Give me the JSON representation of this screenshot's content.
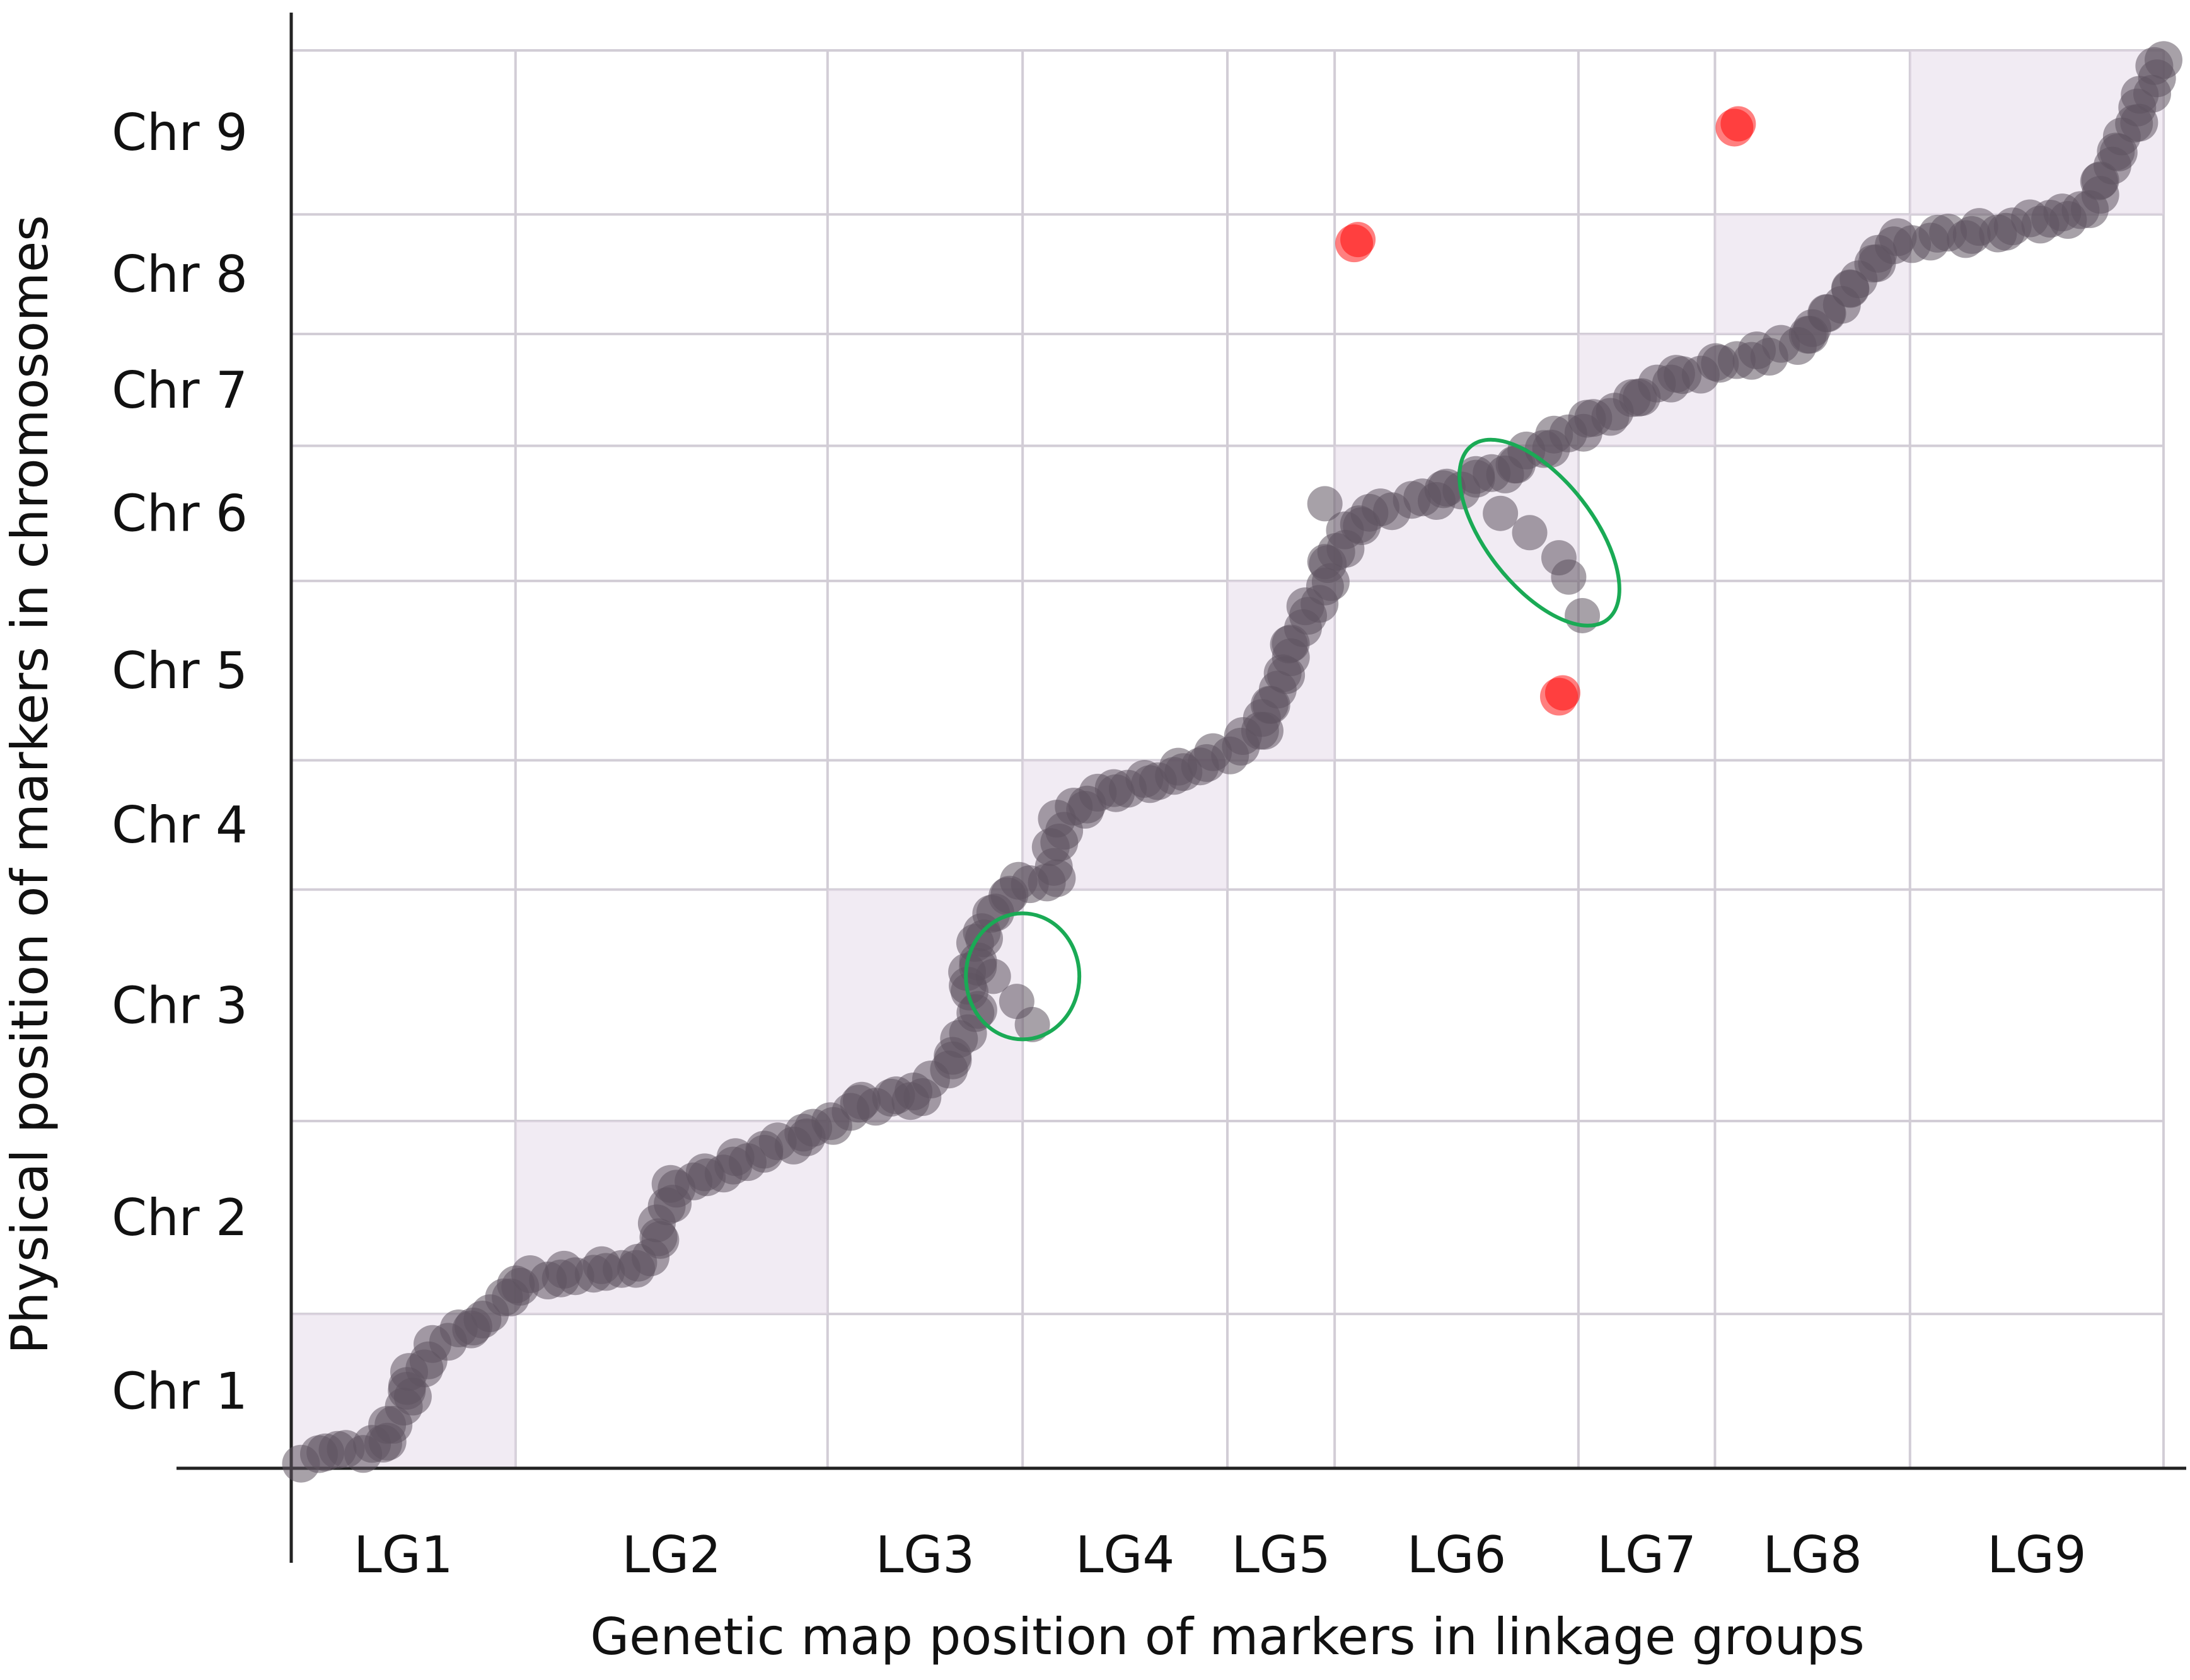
{
  "chart_data": {
    "type": "scatter",
    "title": "",
    "xlabel": "Genetic map position of markers in linkage groups",
    "ylabel": "Physical position of markers in chromosomes",
    "x_tick_labels": [
      "LG1",
      "LG2",
      "LG3",
      "LG4",
      "LG5",
      "LG6",
      "LG7",
      "LG8",
      "LG9"
    ],
    "y_tick_labels": [
      "Chr 1",
      "Chr 2",
      "Chr 3",
      "Chr 4",
      "Chr 5",
      "Chr 6",
      "Chr 7",
      "Chr 8",
      "Chr 9"
    ],
    "x_group_bounds": [
      0,
      1.15,
      2.75,
      3.75,
      4.8,
      5.35,
      6.6,
      7.3,
      8.3,
      9.6
    ],
    "y_group_bounds": [
      0,
      0.8,
      1.8,
      3.0,
      3.67,
      4.6,
      5.3,
      5.88,
      6.5,
      7.35
    ],
    "xlim": [
      0,
      9.6
    ],
    "ylim": [
      0,
      7.35
    ],
    "grid": true,
    "legend": "none",
    "colors": {
      "markers": "#5e5360",
      "outliers": "#ff0000",
      "highlight_ellipse": "#1aaa55",
      "group_box": "#e6dbea",
      "grid": "#d2cdd6",
      "axis": "#222222"
    },
    "series": [
      {
        "color": "#5e5360",
        "points": [
          [
            0.05,
            0.05
          ],
          [
            0.25,
            0.08
          ],
          [
            0.45,
            0.12
          ],
          [
            0.55,
            0.25
          ],
          [
            0.6,
            0.35
          ],
          [
            0.62,
            0.5
          ],
          [
            0.7,
            0.58
          ],
          [
            0.85,
            0.7
          ],
          [
            1.0,
            0.78
          ],
          [
            1.1,
            0.9
          ],
          [
            1.25,
            0.98
          ],
          [
            1.75,
            1.05
          ],
          [
            1.85,
            1.1
          ],
          [
            1.95,
            1.45
          ],
          [
            2.2,
            1.55
          ],
          [
            2.45,
            1.65
          ],
          [
            2.6,
            1.72
          ],
          [
            2.8,
            1.8
          ],
          [
            2.9,
            1.88
          ],
          [
            3.1,
            1.92
          ],
          [
            3.25,
            1.95
          ],
          [
            3.35,
            2.05
          ],
          [
            3.45,
            2.22
          ],
          [
            3.5,
            2.4
          ],
          [
            3.48,
            2.55
          ],
          [
            3.55,
            2.75
          ],
          [
            3.6,
            2.9
          ],
          [
            3.75,
            3.02
          ],
          [
            3.9,
            3.07
          ],
          [
            3.95,
            3.38
          ],
          [
            4.2,
            3.5
          ],
          [
            4.45,
            3.58
          ],
          [
            4.7,
            3.66
          ],
          [
            4.95,
            3.8
          ],
          [
            5.05,
            3.98
          ],
          [
            5.1,
            4.2
          ],
          [
            5.22,
            4.45
          ],
          [
            5.32,
            4.62
          ],
          [
            5.4,
            4.85
          ],
          [
            5.6,
            4.97
          ],
          [
            5.85,
            5.04
          ],
          [
            6.1,
            5.13
          ],
          [
            6.25,
            5.2
          ],
          [
            6.8,
            5.5
          ],
          [
            7.1,
            5.65
          ],
          [
            7.4,
            5.75
          ],
          [
            7.6,
            5.78
          ],
          [
            7.75,
            5.85
          ],
          [
            7.9,
            6.0
          ],
          [
            8.2,
            6.35
          ],
          [
            8.5,
            6.38
          ],
          [
            8.8,
            6.43
          ],
          [
            9.0,
            6.48
          ],
          [
            9.2,
            6.5
          ],
          [
            9.45,
            7.0
          ],
          [
            9.6,
            7.3
          ]
        ]
      },
      {
        "color": "#ff0000",
        "points": [
          [
            5.45,
            6.35
          ],
          [
            6.5,
            4.0
          ],
          [
            7.4,
            6.95
          ]
        ]
      }
    ]
  }
}
